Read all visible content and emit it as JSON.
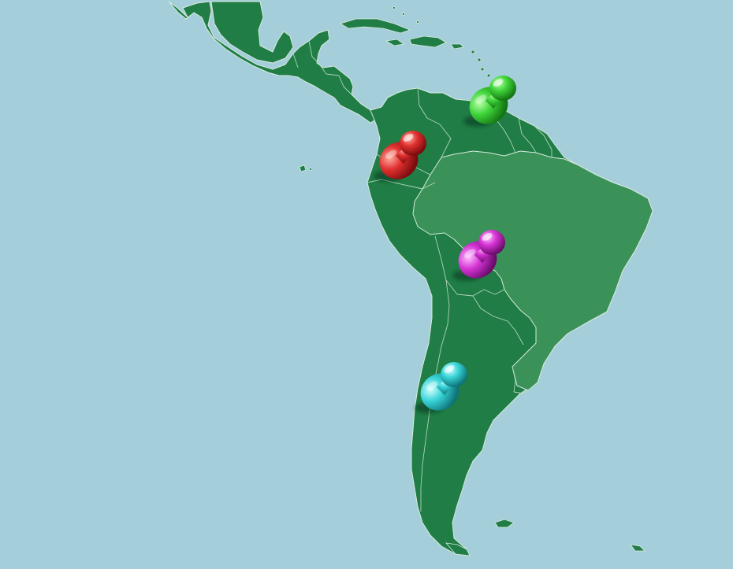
{
  "map": {
    "ocean_color": "#a4cfda",
    "land_color": "#1f7d45",
    "highlight_land_color": "#3a9259",
    "border_color": "#d8e9dc"
  },
  "pins": [
    {
      "id": "venezuela",
      "color": "#2ec12e",
      "light": "#8ff07f",
      "dark": "#147a14"
    },
    {
      "id": "ecuador",
      "color": "#d8282b",
      "light": "#ff8a7a",
      "dark": "#7e0d0f"
    },
    {
      "id": "bolivia",
      "color": "#cc2ccc",
      "light": "#f59af5",
      "dark": "#6e0d6e"
    },
    {
      "id": "chile",
      "color": "#2ccdd2",
      "light": "#a6f5f6",
      "dark": "#0f7a80"
    }
  ]
}
